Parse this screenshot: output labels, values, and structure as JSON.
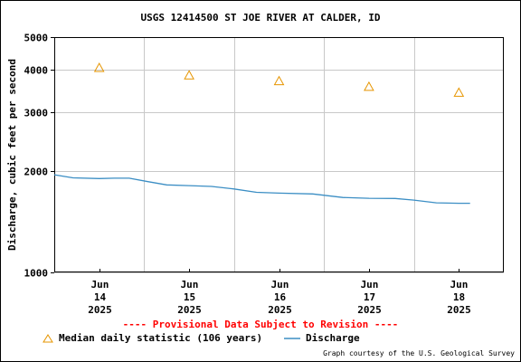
{
  "chart_data": {
    "type": "line",
    "title": "USGS 12414500 ST JOE RIVER AT CALDER, ID",
    "ylabel": "Discharge, cubic feet per second",
    "xlabel": "",
    "y_scale": "log",
    "ylim": [
      1000,
      5000
    ],
    "y_ticks": [
      {
        "value": 1000,
        "label": "1000"
      },
      {
        "value": 2000,
        "label": "2000"
      },
      {
        "value": 3000,
        "label": "3000"
      },
      {
        "value": 4000,
        "label": "4000"
      },
      {
        "value": 5000,
        "label": "5000"
      }
    ],
    "xlim": [
      "2025-06-13 12:00",
      "2025-06-18 12:00"
    ],
    "x_ticks": [
      {
        "value": "2025-06-14 00:00",
        "month": "Jun",
        "day": "14",
        "year": "2025"
      },
      {
        "value": "2025-06-15 00:00",
        "month": "Jun",
        "day": "15",
        "year": "2025"
      },
      {
        "value": "2025-06-16 00:00",
        "month": "Jun",
        "day": "16",
        "year": "2025"
      },
      {
        "value": "2025-06-17 00:00",
        "month": "Jun",
        "day": "17",
        "year": "2025"
      },
      {
        "value": "2025-06-18 00:00",
        "month": "Jun",
        "day": "18",
        "year": "2025"
      }
    ],
    "grid": true,
    "series": [
      {
        "name": "Median daily statistic (106 years)",
        "type": "scatter",
        "marker": "triangle",
        "color": "#e69500",
        "points": [
          {
            "x": "2025-06-14 00:00",
            "y": 4050
          },
          {
            "x": "2025-06-15 00:00",
            "y": 3850
          },
          {
            "x": "2025-06-16 00:00",
            "y": 3700
          },
          {
            "x": "2025-06-17 00:00",
            "y": 3560
          },
          {
            "x": "2025-06-18 00:00",
            "y": 3420
          }
        ]
      },
      {
        "name": "Discharge",
        "type": "line",
        "color": "#3b8ec4",
        "points": [
          {
            "x": "2025-06-13 12:00",
            "y": 1950
          },
          {
            "x": "2025-06-13 17:00",
            "y": 1910
          },
          {
            "x": "2025-06-14 00:00",
            "y": 1900
          },
          {
            "x": "2025-06-14 04:00",
            "y": 1905
          },
          {
            "x": "2025-06-14 08:00",
            "y": 1905
          },
          {
            "x": "2025-06-14 13:00",
            "y": 1860
          },
          {
            "x": "2025-06-14 18:00",
            "y": 1820
          },
          {
            "x": "2025-06-15 00:00",
            "y": 1810
          },
          {
            "x": "2025-06-15 06:00",
            "y": 1800
          },
          {
            "x": "2025-06-15 12:00",
            "y": 1770
          },
          {
            "x": "2025-06-15 18:00",
            "y": 1730
          },
          {
            "x": "2025-06-16 00:00",
            "y": 1720
          },
          {
            "x": "2025-06-16 09:00",
            "y": 1710
          },
          {
            "x": "2025-06-16 17:00",
            "y": 1670
          },
          {
            "x": "2025-06-17 00:00",
            "y": 1660
          },
          {
            "x": "2025-06-17 07:00",
            "y": 1658
          },
          {
            "x": "2025-06-17 12:00",
            "y": 1640
          },
          {
            "x": "2025-06-17 18:00",
            "y": 1610
          },
          {
            "x": "2025-06-18 00:00",
            "y": 1605
          },
          {
            "x": "2025-06-18 03:00",
            "y": 1605
          }
        ]
      }
    ],
    "legend_placement": "bottom",
    "annotations": [
      "---- Provisional Data Subject to Revision ----"
    ]
  },
  "legend": {
    "median_label": "Median daily statistic (106 years)",
    "discharge_label": "Discharge"
  },
  "provisional_note": "---- Provisional Data Subject to Revision ----",
  "credit": "Graph courtesy of the U.S. Geological Survey",
  "colors": {
    "median": "#e69500",
    "discharge": "#3b8ec4",
    "provisional": "#ff0000",
    "grid": "#c8c8c8"
  }
}
